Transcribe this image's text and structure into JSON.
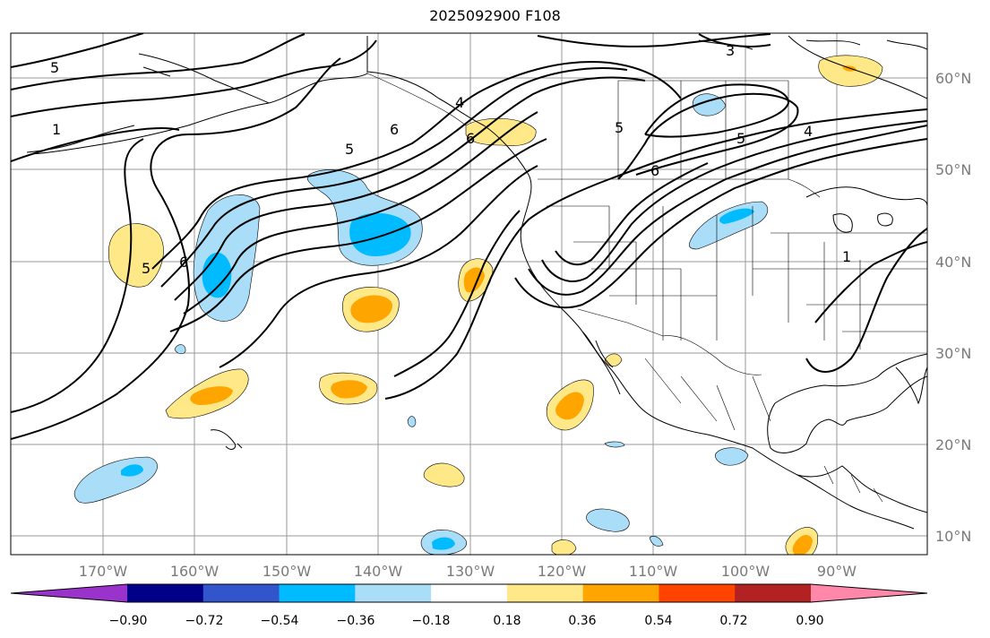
{
  "title": "2025092900 F108",
  "map": {
    "lon_labels": [
      "170°W",
      "160°W",
      "150°W",
      "140°W",
      "130°W",
      "120°W",
      "110°W",
      "100°W",
      "90°W"
    ],
    "lat_labels": [
      "60°N",
      "50°N",
      "40°N",
      "30°N",
      "20°N",
      "10°N"
    ],
    "contour_labels": [
      "5",
      "1",
      "5",
      "6",
      "4",
      "5",
      "6",
      "3",
      "5",
      "6",
      "4",
      "5",
      "6",
      "1"
    ]
  },
  "colorbar": {
    "tick_labels": [
      "−0.90",
      "−0.72",
      "−0.54",
      "−0.36",
      "−0.18",
      "0.18",
      "0.36",
      "0.54",
      "0.72",
      "0.90"
    ],
    "colors": [
      "#9933cc",
      "#000088",
      "#3355cc",
      "#00bbff",
      "#aaddf7",
      "#ffffff",
      "#ffe888",
      "#ffa500",
      "#ff4400",
      "#b22222",
      "#ff88aa"
    ]
  }
}
